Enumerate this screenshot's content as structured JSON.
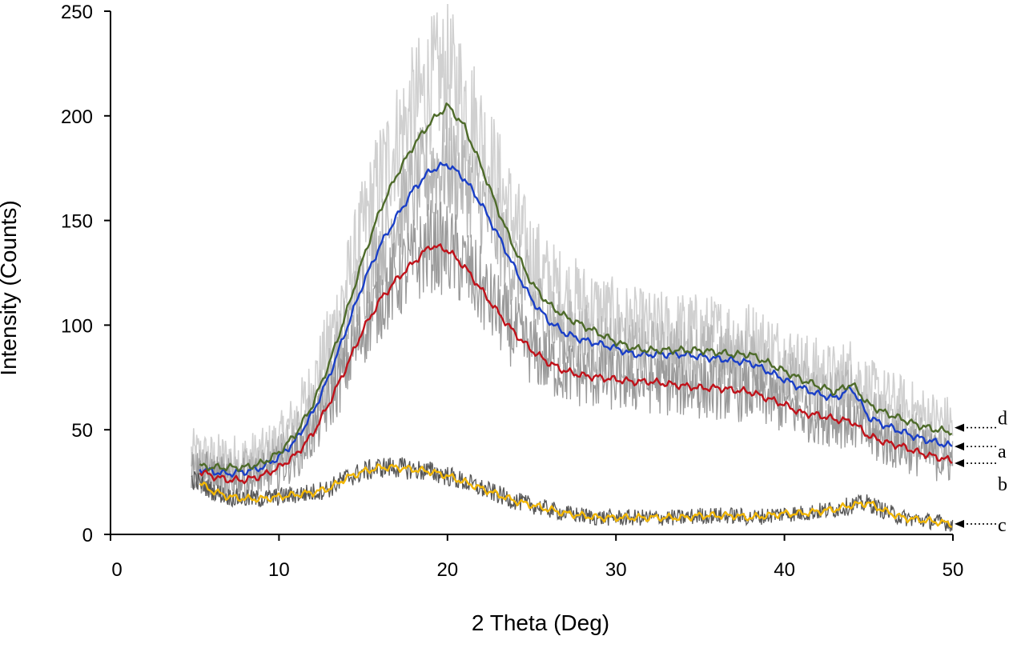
{
  "chart_data": {
    "type": "line",
    "title": "",
    "xlabel": "2 Theta (Deg)",
    "ylabel": "Intensity (Counts)",
    "xlim": [
      0,
      50
    ],
    "ylim": [
      0,
      250
    ],
    "xticks": [
      "0",
      "10",
      "20",
      "30",
      "40",
      "50"
    ],
    "yticks": [
      "0",
      "50",
      "100",
      "150",
      "200",
      "250"
    ],
    "grid": false,
    "legend": "inline labels at right end of each series",
    "colors": {
      "a": "#1a3fc7",
      "b": "#c0121a",
      "c": "#f2b705",
      "d": "#4e6b2a",
      "raw_light": "#d0d0d0",
      "raw_mid": "#9a9a9a",
      "raw_dark": "#555555"
    },
    "series": [
      {
        "name": "a",
        "label": "a",
        "x": [
          5,
          6,
          7,
          8,
          9,
          10,
          11,
          12,
          13,
          14,
          15,
          16,
          17,
          18,
          19,
          20,
          21,
          22,
          23,
          24,
          25,
          26,
          27,
          28,
          29,
          30,
          31,
          32,
          33,
          34,
          35,
          36,
          37,
          38,
          39,
          40,
          41,
          42,
          43,
          44,
          45,
          46,
          47,
          48,
          49,
          50
        ],
        "values": [
          32,
          30,
          29,
          30,
          32,
          37,
          45,
          58,
          76,
          98,
          120,
          138,
          152,
          165,
          174,
          177,
          170,
          158,
          143,
          127,
          112,
          102,
          96,
          93,
          91,
          89,
          86,
          86,
          86,
          86,
          85,
          84,
          83,
          82,
          78,
          74,
          70,
          67,
          65,
          70,
          56,
          52,
          49,
          46,
          44,
          42
        ]
      },
      {
        "name": "b",
        "label": "b",
        "x": [
          5,
          6,
          7,
          8,
          9,
          10,
          11,
          12,
          13,
          14,
          15,
          16,
          17,
          18,
          19,
          20,
          21,
          22,
          23,
          24,
          25,
          26,
          27,
          28,
          29,
          30,
          31,
          32,
          33,
          34,
          35,
          36,
          37,
          38,
          39,
          40,
          41,
          42,
          43,
          44,
          45,
          46,
          47,
          48,
          49,
          50
        ],
        "values": [
          31,
          28,
          26,
          26,
          28,
          32,
          38,
          48,
          63,
          80,
          98,
          112,
          122,
          130,
          138,
          136,
          128,
          117,
          106,
          96,
          88,
          82,
          78,
          76,
          75,
          74,
          73,
          73,
          72,
          71,
          70,
          70,
          69,
          68,
          65,
          62,
          58,
          57,
          55,
          54,
          47,
          44,
          42,
          39,
          37,
          35
        ]
      },
      {
        "name": "c",
        "label": "c",
        "x": [
          5,
          6,
          7,
          8,
          9,
          10,
          11,
          12,
          13,
          14,
          15,
          16,
          17,
          18,
          19,
          20,
          21,
          22,
          23,
          24,
          25,
          26,
          27,
          28,
          29,
          30,
          31,
          32,
          33,
          34,
          35,
          36,
          37,
          38,
          39,
          40,
          41,
          42,
          43,
          44,
          45,
          46,
          47,
          48,
          49,
          50
        ],
        "values": [
          26,
          21,
          18,
          17,
          17,
          18,
          19,
          20,
          22,
          27,
          30,
          32,
          32,
          31,
          30,
          28,
          25,
          22,
          19,
          16,
          14,
          12,
          10,
          9,
          8,
          8,
          8,
          8,
          8,
          8,
          9,
          9,
          9,
          8,
          9,
          10,
          10,
          11,
          12,
          14,
          15,
          11,
          8,
          7,
          6,
          5
        ]
      },
      {
        "name": "d",
        "label": "d",
        "x": [
          5,
          6,
          7,
          8,
          9,
          10,
          11,
          12,
          13,
          14,
          15,
          16,
          17,
          18,
          19,
          20,
          21,
          22,
          23,
          24,
          25,
          26,
          27,
          28,
          29,
          30,
          31,
          32,
          33,
          34,
          35,
          36,
          37,
          38,
          39,
          40,
          41,
          42,
          43,
          44,
          45,
          46,
          47,
          48,
          49,
          50
        ],
        "values": [
          33,
          32,
          32,
          32,
          34,
          39,
          48,
          62,
          82,
          106,
          132,
          155,
          172,
          186,
          197,
          205,
          195,
          176,
          155,
          136,
          120,
          110,
          104,
          100,
          96,
          92,
          89,
          88,
          88,
          88,
          88,
          87,
          86,
          86,
          82,
          78,
          74,
          71,
          68,
          72,
          62,
          58,
          55,
          52,
          50,
          49
        ]
      },
      {
        "name": "raw-data-envelope",
        "label": "",
        "x": [
          5,
          6,
          7,
          8,
          9,
          10,
          11,
          12,
          13,
          14,
          15,
          16,
          17,
          18,
          19,
          20,
          21,
          22,
          23,
          24,
          25,
          26,
          27,
          28,
          29,
          30,
          31,
          32,
          33,
          34,
          35,
          36,
          37,
          38,
          39,
          40,
          41,
          42,
          43,
          44,
          45,
          46,
          47,
          48,
          49,
          50
        ],
        "values": [
          38,
          36,
          36,
          36,
          38,
          44,
          55,
          70,
          92,
          118,
          146,
          170,
          188,
          203,
          215,
          220,
          208,
          190,
          168,
          148,
          132,
          120,
          114,
          110,
          106,
          102,
          99,
          97,
          97,
          97,
          96,
          95,
          94,
          93,
          89,
          85,
          80,
          77,
          74,
          78,
          68,
          64,
          61,
          57,
          54,
          52
        ]
      }
    ],
    "annotations": [
      {
        "label": "d",
        "target_y": 51
      },
      {
        "label": "a",
        "target_y": 42
      },
      {
        "label": "b",
        "target_y": 34
      },
      {
        "label": "c",
        "target_y": 5
      }
    ]
  }
}
